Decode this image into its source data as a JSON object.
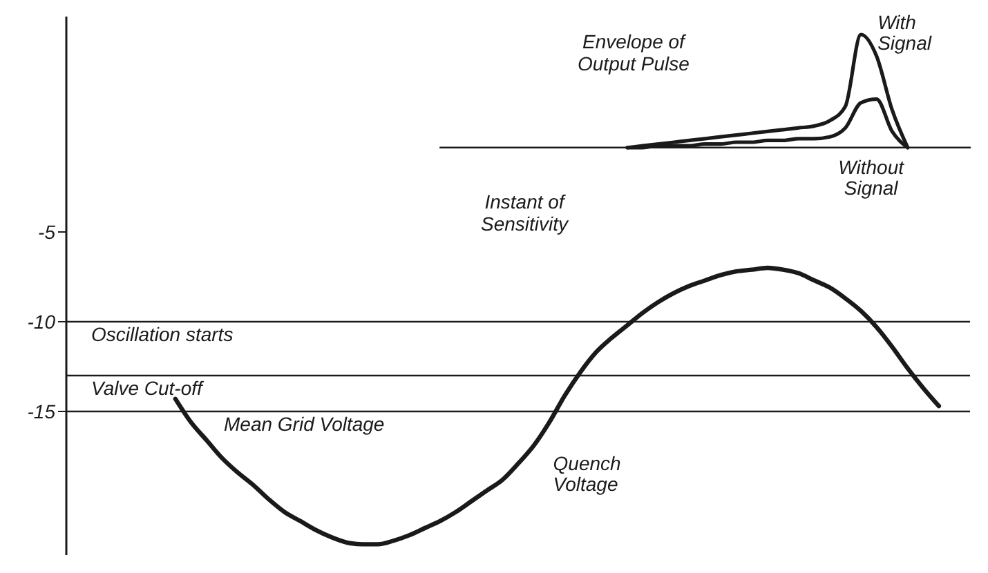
{
  "chart_data": {
    "type": "line",
    "categories": [
      null,
      null,
      null,
      null,
      null,
      null,
      null,
      null,
      null,
      null,
      null,
      null,
      null,
      null,
      null,
      null,
      null,
      null,
      null,
      null,
      null,
      null,
      null,
      null,
      null,
      null,
      null,
      null,
      null,
      null,
      null,
      null,
      null,
      null,
      null,
      null,
      null,
      null,
      null,
      null,
      null,
      null,
      null,
      null,
      null,
      null,
      null,
      null,
      null,
      null,
      null,
      null,
      null,
      null,
      null,
      null,
      null,
      null,
      null
    ],
    "series": [
      {
        "name": "Quench Voltage",
        "color": "#1a1a1a",
        "values": [
          null,
          null,
          null,
          null,
          null,
          null,
          null,
          -14.3,
          -15.6,
          -16.6,
          -17.6,
          -18.4,
          -19.1,
          -19.9,
          -20.6,
          -21.1,
          -21.6,
          -22.0,
          -22.3,
          -22.4,
          -22.4,
          -22.2,
          -21.9,
          -21.5,
          -21.1,
          -20.6,
          -20.0,
          -19.4,
          -18.8,
          -17.9,
          -16.9,
          -15.6,
          -14.1,
          -12.8,
          -11.7,
          -10.9,
          -10.2,
          -9.5,
          -8.9,
          -8.4,
          -8.0,
          -7.7,
          -7.4,
          -7.2,
          -7.1,
          -7.0,
          -7.1,
          -7.3,
          -7.7,
          -8.1,
          -8.7,
          -9.4,
          -10.3,
          -11.4,
          -12.6,
          -13.7,
          -14.7,
          null,
          null
        ]
      },
      {
        "name": "With Signal",
        "color": "#1a1a1a",
        "values": [
          null,
          null,
          null,
          null,
          null,
          null,
          null,
          null,
          null,
          null,
          null,
          null,
          null,
          null,
          null,
          null,
          null,
          null,
          null,
          null,
          null,
          null,
          null,
          null,
          null,
          null,
          null,
          null,
          null,
          null,
          null,
          null,
          null,
          null,
          null,
          null,
          -0.3,
          -0.2,
          -0.1,
          0.0,
          0.1,
          0.2,
          0.3,
          0.4,
          0.5,
          0.6,
          0.7,
          0.8,
          0.9,
          1.2,
          2.0,
          6.0,
          4.8,
          1.8,
          -0.3,
          null,
          null,
          null,
          null
        ]
      },
      {
        "name": "Without Signal",
        "color": "#1a1a1a",
        "values": [
          null,
          null,
          null,
          null,
          null,
          null,
          null,
          null,
          null,
          null,
          null,
          null,
          null,
          null,
          null,
          null,
          null,
          null,
          null,
          null,
          null,
          null,
          null,
          null,
          null,
          null,
          null,
          null,
          null,
          null,
          null,
          null,
          null,
          null,
          null,
          null,
          -0.3,
          -0.3,
          -0.2,
          -0.2,
          -0.2,
          -0.1,
          -0.1,
          0.0,
          0.0,
          0.1,
          0.1,
          0.2,
          0.2,
          0.3,
          0.8,
          2.2,
          2.4,
          0.6,
          -0.3,
          null,
          null,
          null,
          null
        ]
      },
      {
        "color": "#1a1a1a",
        "values": [
          null,
          null,
          null,
          null,
          null,
          null,
          null,
          null,
          null,
          null,
          null,
          null,
          null,
          null,
          null,
          null,
          null,
          null,
          null,
          null,
          null,
          null,
          null,
          null,
          -0.3,
          -0.3,
          -0.3,
          -0.3,
          -0.3,
          -0.3,
          -0.3,
          -0.3,
          -0.3,
          -0.3,
          -0.3,
          -0.3,
          -0.3,
          -0.3,
          -0.3,
          -0.3,
          -0.3,
          -0.3,
          -0.3,
          -0.3,
          -0.3,
          -0.3,
          -0.3,
          -0.3,
          -0.3,
          -0.3,
          -0.3,
          -0.3,
          -0.3,
          -0.3,
          -0.3,
          -0.3,
          -0.3,
          -0.3,
          -0.3
        ]
      }
    ],
    "ylim": [
      -23,
      7
    ],
    "yticks": [
      -5,
      -10,
      -15
    ],
    "tick_labels": "y",
    "grid": false,
    "legend": false,
    "marker": "none",
    "line_style": "solid",
    "ref_lines": [
      {
        "axis": "y",
        "value": -10,
        "label": "Oscillation starts",
        "color": "#1a1a1a"
      },
      {
        "axis": "y",
        "value": -13,
        "label": "Valve Cut-off",
        "color": "#1a1a1a"
      },
      {
        "axis": "y",
        "value": -15,
        "label": "Mean Grid Voltage",
        "color": "#1a1a1a"
      }
    ],
    "annotations": [
      "Envelope of Output Pulse",
      "Instant of Sensitivity"
    ]
  }
}
